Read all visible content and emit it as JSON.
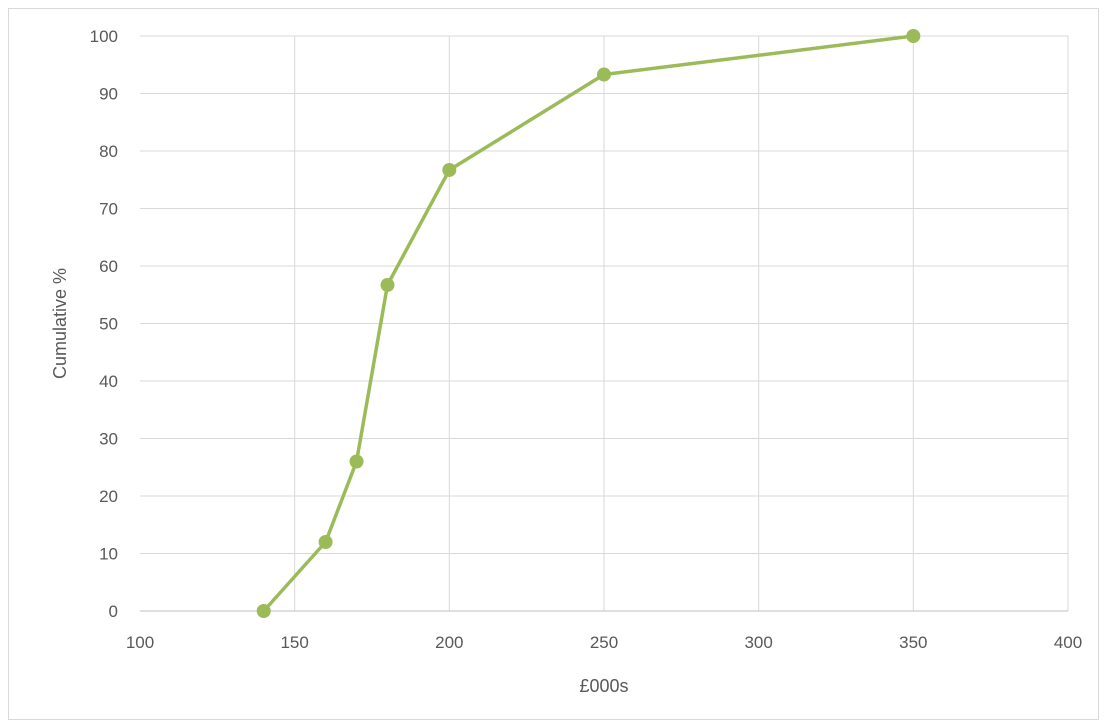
{
  "chart_data": {
    "type": "line",
    "title": "",
    "xlabel": "£000s",
    "ylabel": "Cumulative %",
    "xlim": [
      100,
      400
    ],
    "ylim": [
      0,
      100
    ],
    "x_ticks": [
      100,
      150,
      200,
      250,
      300,
      350,
      400
    ],
    "y_ticks": [
      0,
      10,
      20,
      30,
      40,
      50,
      60,
      70,
      80,
      90,
      100
    ],
    "grid": true,
    "series": [
      {
        "x": [
          140,
          160,
          170,
          180,
          200,
          250,
          350
        ],
        "y": [
          0,
          12,
          26,
          56.7,
          76.7,
          93.3,
          100
        ],
        "color": "#9bbb59",
        "marker": "circle"
      }
    ]
  }
}
